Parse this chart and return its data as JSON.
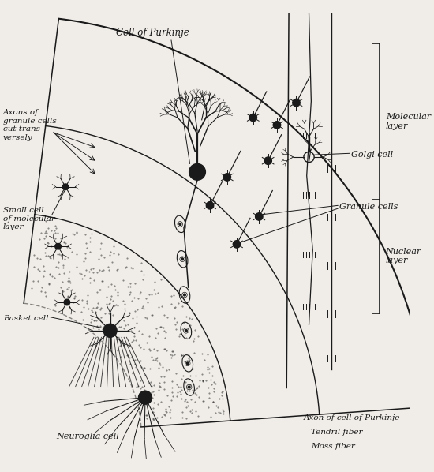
{
  "background_color": "#f0ede8",
  "line_color": "#1a1a1a",
  "labels": {
    "cell_of_purkinje": "Cell of Purkinje",
    "molecular_layer": "Molecular\nlayer",
    "golgi_cell": "Golgi cell",
    "nuclear_layer": "Nuclear\nlayer",
    "granule_cells": "Granule cells",
    "axons_of_granule": "Axons of\ngranule cells\ncut trans-\nversely",
    "small_cell": "Small cell\nof molecular\nlayer",
    "basket_cell": "Basket cell",
    "neuroglia_cell": "Neuroglia cell",
    "axon_purkinje": "Axon of cell of Purkinje",
    "tendril_fiber": "Tendril fiber",
    "moss_fiber": "Moss fiber"
  },
  "figsize": [
    5.5,
    5.98
  ],
  "dpi": 100
}
